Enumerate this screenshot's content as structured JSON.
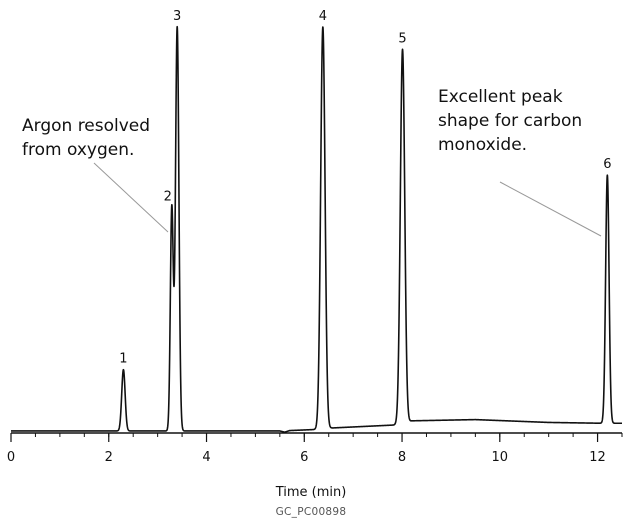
{
  "chart_data": {
    "type": "line",
    "xlabel": "Time (min)",
    "ylabel": "",
    "xlim": [
      0,
      12.5
    ],
    "ylim": [
      0,
      100
    ],
    "x_ticks": [
      0,
      2,
      4,
      6,
      8,
      10,
      12
    ],
    "x_minor_step": 0.5,
    "grid": false,
    "series": [
      {
        "baseline": [
          [
            0,
            0.5
          ],
          [
            3.5,
            0.5
          ],
          [
            5.5,
            0.5
          ],
          [
            5.6,
            0.2
          ],
          [
            5.7,
            0.6
          ],
          [
            6.3,
            0.9
          ],
          [
            6.5,
            1.2
          ],
          [
            7.9,
            2.0
          ],
          [
            8.2,
            3.0
          ],
          [
            9.5,
            3.3
          ],
          [
            11,
            2.6
          ],
          [
            12.1,
            2.4
          ],
          [
            12.35,
            2.4
          ],
          [
            12.5,
            2.4
          ]
        ],
        "peaks": [
          {
            "label": "1",
            "x": 2.3,
            "height": 15.6,
            "width": 0.035
          },
          {
            "label": "2",
            "x": 3.29,
            "height": 55.5,
            "width": 0.03
          },
          {
            "label": "3",
            "x": 3.4,
            "height": 100,
            "width": 0.035
          },
          {
            "label": "4",
            "x": 6.38,
            "height": 100,
            "width": 0.045
          },
          {
            "label": "5",
            "x": 8.01,
            "height": 94.5,
            "width": 0.045
          },
          {
            "label": "6",
            "x": 12.2,
            "height": 63.5,
            "width": 0.035
          }
        ]
      }
    ],
    "annotations": [
      {
        "lines": [
          "Argon resolved",
          "from oxygen."
        ],
        "target_peak": "2"
      },
      {
        "lines": [
          "Excellent peak",
          "shape for carbon",
          "monoxide."
        ],
        "target_peak": "6"
      }
    ]
  },
  "figure_code": "GC_PC00898"
}
